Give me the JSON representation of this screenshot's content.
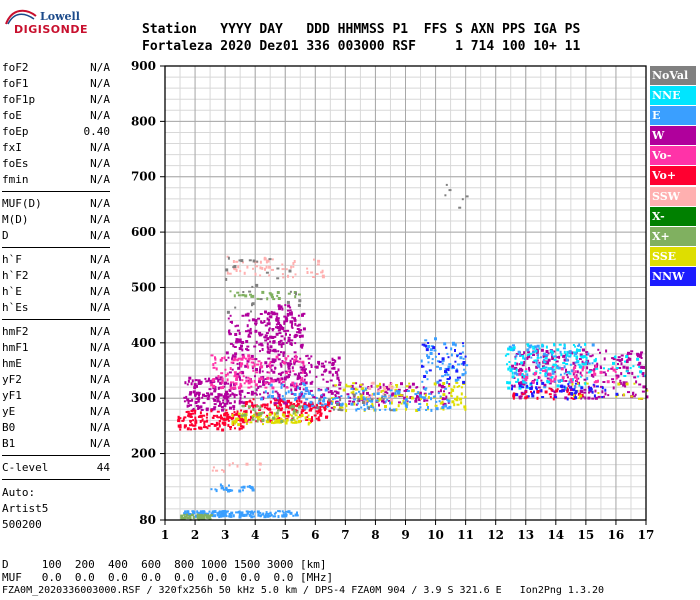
{
  "logo": {
    "top": "Lowell",
    "bottom": "DIGISONDE"
  },
  "header": {
    "row1": "Station   YYYY DAY   DDD HHMMSS P1  FFS S AXN PPS IGA PS",
    "row2": "Fortaleza 2020 Dez01 336 003000 RSF     1 714 100 10+ 11"
  },
  "params": {
    "group1": [
      {
        "name": "foF2",
        "value": "N/A"
      },
      {
        "name": "foF1",
        "value": "N/A"
      },
      {
        "name": "foF1p",
        "value": "N/A"
      },
      {
        "name": "foE",
        "value": "N/A"
      },
      {
        "name": "foEp",
        "value": "0.40"
      },
      {
        "name": "fxI",
        "value": "N/A"
      },
      {
        "name": "foEs",
        "value": "N/A"
      },
      {
        "name": "fmin",
        "value": "N/A"
      }
    ],
    "group2": [
      {
        "name": "MUF(D)",
        "value": "N/A"
      },
      {
        "name": "M(D)",
        "value": "N/A"
      },
      {
        "name": "D",
        "value": "N/A"
      }
    ],
    "group3": [
      {
        "name": "h`F",
        "value": "N/A"
      },
      {
        "name": "h`F2",
        "value": "N/A"
      },
      {
        "name": "h`E",
        "value": "N/A"
      },
      {
        "name": "h`Es",
        "value": "N/A"
      }
    ],
    "group4": [
      {
        "name": "hmF2",
        "value": "N/A"
      },
      {
        "name": "hmF1",
        "value": "N/A"
      },
      {
        "name": "hmE",
        "value": "N/A"
      },
      {
        "name": "yF2",
        "value": "N/A"
      },
      {
        "name": "yF1",
        "value": "N/A"
      },
      {
        "name": "yE",
        "value": "N/A"
      },
      {
        "name": "B0",
        "value": "N/A"
      },
      {
        "name": "B1",
        "value": "N/A"
      }
    ],
    "clevel": {
      "name": "C-level",
      "value": "44"
    }
  },
  "auto": {
    "line1": "Auto:",
    "line2": "Artist5",
    "line3": "500200"
  },
  "legend": [
    {
      "label": "NoVal",
      "color": "#808080"
    },
    {
      "label": "NNE",
      "color": "#00e5ff"
    },
    {
      "label": "E",
      "color": "#3a9fff"
    },
    {
      "label": "W",
      "color": "#b0009c"
    },
    {
      "label": "Vo-",
      "color": "#ff33a8"
    },
    {
      "label": "Vo+",
      "color": "#ff0030"
    },
    {
      "label": "SSW",
      "color": "#ffb0b0"
    },
    {
      "label": "X-",
      "color": "#008000"
    },
    {
      "label": "X+",
      "color": "#80b060"
    },
    {
      "label": "SSE",
      "color": "#dede00"
    },
    {
      "label": "NNW",
      "color": "#1c1cff"
    }
  ],
  "footer": {
    "line1": "D     100  200  400  600  800 1000 1500 3000 [km]",
    "line2": "MUF   0.0  0.0  0.0  0.0  0.0  0.0  0.0  0.0 [MHz]",
    "line3": "FZA0M_2020336003000.RSF / 320fx256h 50 kHz 5.0 km / DPS-4 FZA0M 904 / 3.9 S 321.6 E   Ion2Png 1.3.20"
  },
  "chart_data": {
    "type": "scatter",
    "title": "",
    "xlabel": "",
    "ylabel": "",
    "xlim": [
      1,
      17
    ],
    "ylim": [
      80,
      900
    ],
    "x_ticks": [
      1,
      2,
      3,
      4,
      5,
      6,
      7,
      8,
      9,
      10,
      11,
      12,
      13,
      14,
      15,
      16,
      17
    ],
    "y_ticks": [
      80,
      200,
      300,
      400,
      500,
      600,
      700,
      800,
      900
    ],
    "y_minor_step": 20,
    "x_minor_step": 0.5,
    "grid": true,
    "series": [
      {
        "name": "W",
        "color": "#b0009c",
        "clusters": [
          [
            1.6,
            3.3,
            280,
            340,
            140
          ],
          [
            3.0,
            5.6,
            290,
            460,
            320
          ],
          [
            4.3,
            5.3,
            360,
            470,
            90
          ],
          [
            5.5,
            6.8,
            280,
            380,
            90
          ],
          [
            12.5,
            17.0,
            300,
            390,
            260
          ],
          [
            7.0,
            10.5,
            290,
            330,
            90
          ]
        ]
      },
      {
        "name": "Vo+",
        "color": "#ff0030",
        "clusters": [
          [
            1.4,
            3.6,
            245,
            280,
            130
          ],
          [
            3.5,
            6.5,
            260,
            300,
            150
          ],
          [
            12.5,
            15.0,
            300,
            320,
            30
          ]
        ]
      },
      {
        "name": "SSE",
        "color": "#dede00",
        "clusters": [
          [
            3.2,
            5.8,
            255,
            275,
            80
          ],
          [
            6.5,
            11.0,
            280,
            330,
            110
          ],
          [
            14.5,
            17.0,
            300,
            330,
            20
          ]
        ]
      },
      {
        "name": "E",
        "color": "#3a9fff",
        "clusters": [
          [
            1.6,
            5.4,
            88,
            98,
            130
          ],
          [
            2.5,
            4.0,
            134,
            146,
            26
          ],
          [
            5.5,
            10.5,
            280,
            320,
            110
          ],
          [
            9.5,
            11.0,
            330,
            410,
            60
          ],
          [
            12.4,
            15.2,
            320,
            400,
            90
          ],
          [
            4.0,
            5.8,
            300,
            330,
            30
          ]
        ]
      },
      {
        "name": "NNE",
        "color": "#00e5ff",
        "clusters": [
          [
            12.3,
            15.0,
            320,
            400,
            110
          ],
          [
            14.5,
            17.0,
            340,
            380,
            30
          ]
        ]
      },
      {
        "name": "Vo-",
        "color": "#ff33a8",
        "clusters": [
          [
            2.5,
            5.6,
            320,
            380,
            120
          ],
          [
            12.5,
            16.0,
            330,
            360,
            50
          ]
        ]
      },
      {
        "name": "X+",
        "color": "#80b060",
        "clusters": [
          [
            1.5,
            2.5,
            84,
            92,
            50
          ],
          [
            3.0,
            5.5,
            480,
            495,
            25
          ],
          [
            3.5,
            5.5,
            260,
            290,
            40
          ]
        ]
      },
      {
        "name": "NNW",
        "color": "#1c1cff",
        "clusters": [
          [
            9.5,
            11.0,
            330,
            410,
            35
          ],
          [
            12.5,
            16.0,
            300,
            330,
            50
          ]
        ]
      },
      {
        "name": "SSW",
        "color": "#ffb0b0",
        "clusters": [
          [
            3.0,
            5.5,
            520,
            560,
            45
          ],
          [
            5.5,
            6.5,
            520,
            560,
            12
          ],
          [
            7.5,
            9.0,
            290,
            330,
            20
          ],
          [
            2.5,
            4.5,
            170,
            185,
            12
          ]
        ]
      },
      {
        "name": "NoVal",
        "color": "#808080",
        "clusters": [
          [
            3.0,
            5.5,
            450,
            560,
            30
          ],
          [
            6.0,
            8.5,
            280,
            310,
            20
          ],
          [
            10.0,
            11.0,
            640,
            690,
            6
          ]
        ]
      }
    ]
  }
}
